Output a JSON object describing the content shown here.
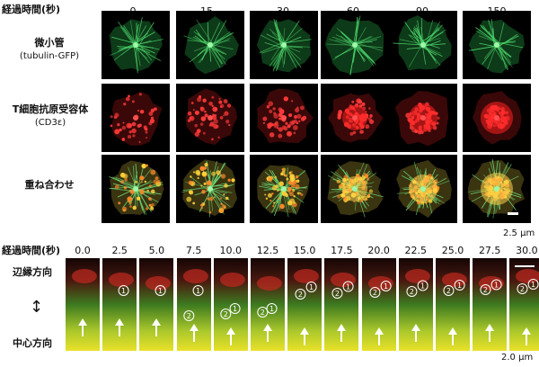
{
  "top": {
    "time_header": "経過時間(秒)",
    "times": [
      "0",
      "15",
      "30",
      "60",
      "90",
      "150"
    ],
    "rows": [
      {
        "label": "微小管",
        "sublabel": "(tubulin-GFP)",
        "channel": "green"
      },
      {
        "label": "T細胞抗原受容体",
        "sublabel": "(CD3ε)",
        "channel": "red"
      },
      {
        "label": "重ね合わせ",
        "sublabel": "",
        "channel": "merge"
      }
    ],
    "scale_label": "2.5 μm"
  },
  "bottom": {
    "time_header": "経過時間(秒)",
    "times": [
      "0.0",
      "2.5",
      "5.0",
      "7.5",
      "10.0",
      "12.5",
      "15.0",
      "17.5",
      "20.0",
      "22.5",
      "25.0",
      "27.5",
      "30.0"
    ],
    "edge_label": "辺縁方向",
    "center_label": "中心方向",
    "arrow_symbol": "↕",
    "up_arrow": "↑",
    "marker_one": "1",
    "marker_two": "2",
    "scale_label": "2.0 μm"
  },
  "colors": {
    "green": "#2ea043",
    "red": "#d12a2a",
    "merge": "#c8b21e",
    "background": "#000000"
  }
}
